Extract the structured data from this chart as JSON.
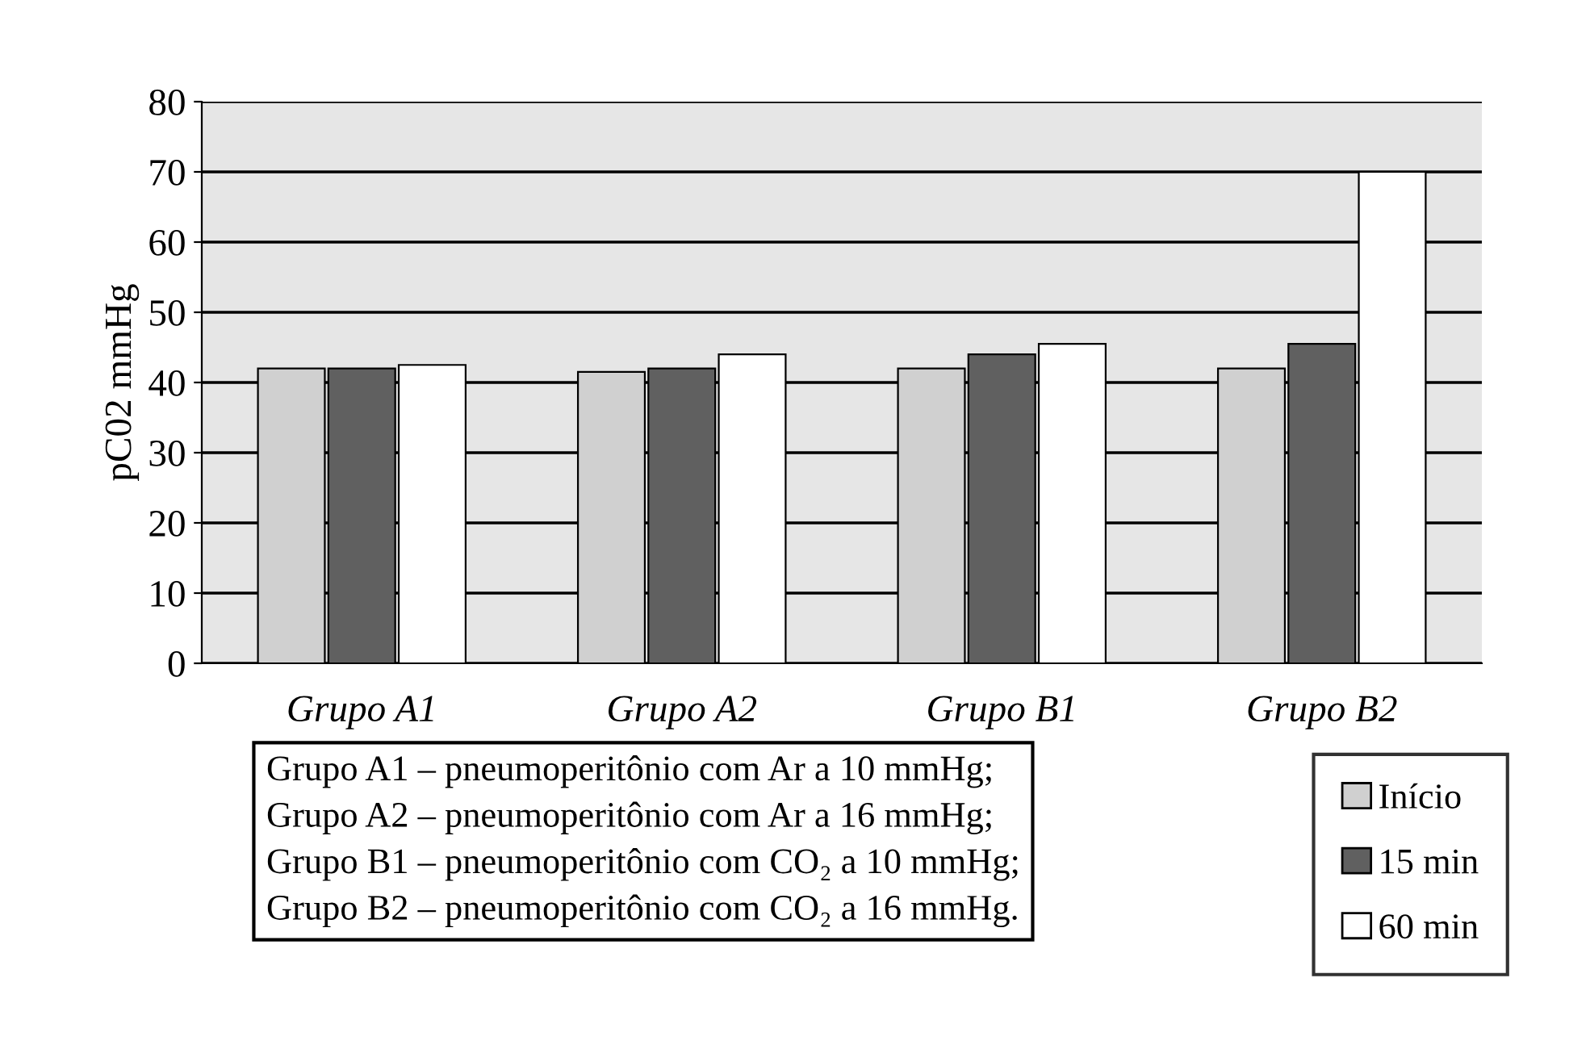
{
  "chart_data": {
    "type": "bar",
    "ylabel": "pC02 mmHg",
    "categories": [
      "Grupo A1",
      "Grupo A2",
      "Grupo B1",
      "Grupo B2"
    ],
    "series": [
      {
        "name": "Início",
        "color": "#d0d0d0",
        "values": [
          42,
          41.5,
          42,
          42
        ]
      },
      {
        "name": "15 min",
        "color": "#606060",
        "values": [
          42,
          42,
          44,
          45.5
        ]
      },
      {
        "name": "60 min",
        "color": "#ffffff",
        "values": [
          42.5,
          44,
          45.5,
          70
        ]
      }
    ],
    "ylim": [
      0,
      80
    ],
    "yticks": [
      0,
      10,
      20,
      30,
      40,
      50,
      60,
      70,
      80
    ],
    "grid": "y",
    "legend": "bottom right",
    "annotations": [
      "Grupo A1 – pneumoperitônio com Ar a 10 mmHg;",
      "Grupo A2 – pneumoperitônio com Ar a 16 mmHg;",
      "Grupo B1 – pneumoperitônio com CO₂ a 10 mmHg;",
      "Grupo B2 – pneumoperitônio com CO₂ a 16 mmHg."
    ]
  }
}
